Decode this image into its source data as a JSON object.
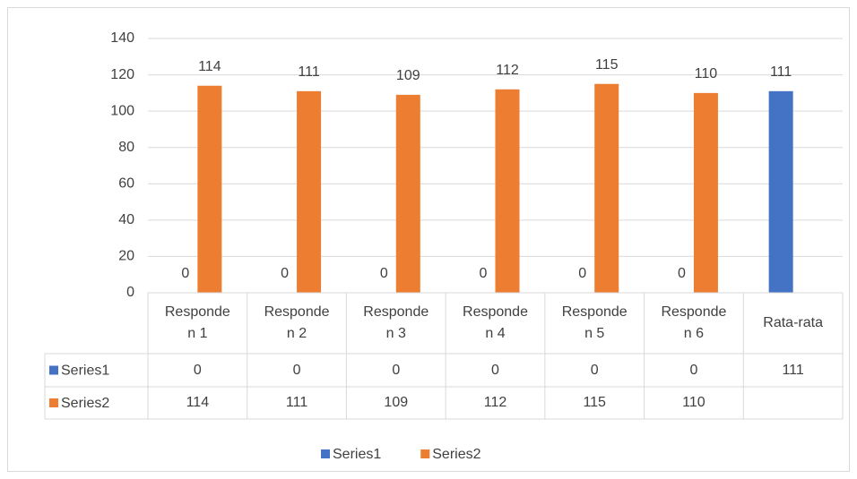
{
  "chart_data": {
    "type": "bar",
    "categories": [
      "Responden 1",
      "Responden 2",
      "Responden 3",
      "Responden 4",
      "Responden 5",
      "Responden 6",
      "Rata-rata"
    ],
    "series": [
      {
        "name": "Series1",
        "color": "#4472c4",
        "values": [
          0,
          0,
          0,
          0,
          0,
          0,
          111
        ]
      },
      {
        "name": "Series2",
        "color": "#ed7d31",
        "values": [
          114,
          111,
          109,
          112,
          115,
          110,
          null
        ]
      }
    ],
    "ylim": [
      0,
      140
    ],
    "yticks": [
      0,
      20,
      40,
      60,
      80,
      100,
      120,
      140
    ],
    "grid": true,
    "data_table": true,
    "legend": "bottom"
  }
}
